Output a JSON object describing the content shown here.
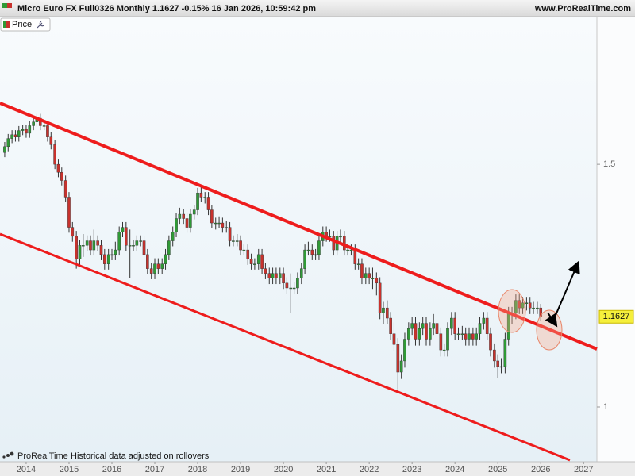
{
  "chart_data": {
    "type": "candlestick",
    "title": "Micro Euro FX Full0326 Monthly 1.1627 -0.15% 16 Jan 2026, 10:59:42 pm",
    "website": "www.ProRealTime.com",
    "legend_label": "Price",
    "footer_brand": "ProRealTime",
    "footer_note": "Historical data adjusted on rollovers",
    "last_price": 1.1627,
    "log_scale": true,
    "grid": false,
    "up_color": "#2f9a36",
    "down_color": "#c8322d",
    "ylim": [
      0.915,
      1.872
    ],
    "yticks": [
      1,
      1.5
    ],
    "xlim": [
      2013.39,
      2027.31
    ],
    "xticks": [
      2014,
      2015,
      2016,
      2017,
      2018,
      2019,
      2020,
      2021,
      2022,
      2023,
      2024,
      2025,
      2026,
      2027
    ],
    "x": [
      2013.5,
      2013.58,
      2013.67,
      2013.75,
      2013.83,
      2013.92,
      2014,
      2014.08,
      2014.17,
      2014.25,
      2014.33,
      2014.42,
      2014.5,
      2014.58,
      2014.67,
      2014.75,
      2014.83,
      2014.92,
      2015,
      2015.08,
      2015.17,
      2015.25,
      2015.33,
      2015.42,
      2015.5,
      2015.58,
      2015.67,
      2015.75,
      2015.83,
      2015.92,
      2016,
      2016.08,
      2016.17,
      2016.25,
      2016.33,
      2016.42,
      2016.5,
      2016.58,
      2016.67,
      2016.75,
      2016.83,
      2016.92,
      2017,
      2017.08,
      2017.17,
      2017.25,
      2017.33,
      2017.42,
      2017.5,
      2017.58,
      2017.67,
      2017.75,
      2017.83,
      2017.92,
      2018,
      2018.08,
      2018.17,
      2018.25,
      2018.33,
      2018.42,
      2018.5,
      2018.58,
      2018.67,
      2018.75,
      2018.83,
      2018.92,
      2019,
      2019.08,
      2019.17,
      2019.25,
      2019.33,
      2019.42,
      2019.5,
      2019.58,
      2019.67,
      2019.75,
      2019.83,
      2019.92,
      2020,
      2020.08,
      2020.17,
      2020.25,
      2020.33,
      2020.42,
      2020.5,
      2020.58,
      2020.67,
      2020.75,
      2020.83,
      2020.92,
      2021,
      2021.08,
      2021.17,
      2021.25,
      2021.33,
      2021.42,
      2021.5,
      2021.58,
      2021.67,
      2021.75,
      2021.83,
      2021.92,
      2022,
      2022.08,
      2022.17,
      2022.25,
      2022.33,
      2022.42,
      2022.5,
      2022.58,
      2022.67,
      2022.75,
      2022.83,
      2022.92,
      2023,
      2023.08,
      2023.17,
      2023.25,
      2023.33,
      2023.42,
      2023.5,
      2023.58,
      2023.67,
      2023.75,
      2023.83,
      2023.92,
      2024,
      2024.08,
      2024.17,
      2024.25,
      2024.33,
      2024.42,
      2024.5,
      2024.58,
      2024.67,
      2024.75,
      2024.83,
      2024.92,
      2025,
      2025.08,
      2025.17,
      2025.25,
      2025.33,
      2025.42,
      2025.5,
      2025.58,
      2025.67,
      2025.75,
      2025.83,
      2025.92,
      2026
    ],
    "candles": [
      [
        1.53,
        1.557,
        1.518,
        1.545
      ],
      [
        1.545,
        1.578,
        1.533,
        1.566
      ],
      [
        1.566,
        1.588,
        1.554,
        1.576
      ],
      [
        1.576,
        1.588,
        1.558,
        1.57
      ],
      [
        1.57,
        1.599,
        1.558,
        1.587
      ],
      [
        1.587,
        1.602,
        1.575,
        1.59
      ],
      [
        1.59,
        1.602,
        1.568,
        1.58
      ],
      [
        1.58,
        1.612,
        1.568,
        1.6
      ],
      [
        1.6,
        1.622,
        1.588,
        1.61
      ],
      [
        1.61,
        1.632,
        1.598,
        1.62
      ],
      [
        1.62,
        1.632,
        1.588,
        1.6
      ],
      [
        1.6,
        1.612,
        1.588,
        1.6
      ],
      [
        1.6,
        1.612,
        1.558,
        1.57
      ],
      [
        1.57,
        1.582,
        1.538,
        1.55
      ],
      [
        1.55,
        1.562,
        1.488,
        1.5
      ],
      [
        1.5,
        1.512,
        1.468,
        1.48
      ],
      [
        1.48,
        1.492,
        1.448,
        1.46
      ],
      [
        1.46,
        1.472,
        1.408,
        1.42
      ],
      [
        1.42,
        1.432,
        1.338,
        1.35
      ],
      [
        1.35,
        1.362,
        1.318,
        1.33
      ],
      [
        1.33,
        1.342,
        1.26,
        1.28
      ],
      [
        1.28,
        1.322,
        1.268,
        1.31
      ],
      [
        1.31,
        1.335,
        1.285,
        1.31
      ],
      [
        1.31,
        1.332,
        1.298,
        1.32
      ],
      [
        1.32,
        1.332,
        1.288,
        1.3
      ],
      [
        1.3,
        1.345,
        1.288,
        1.32
      ],
      [
        1.32,
        1.332,
        1.298,
        1.31
      ],
      [
        1.31,
        1.322,
        1.278,
        1.29
      ],
      [
        1.29,
        1.302,
        1.258,
        1.27
      ],
      [
        1.27,
        1.302,
        1.258,
        1.29
      ],
      [
        1.29,
        1.302,
        1.278,
        1.29
      ],
      [
        1.29,
        1.318,
        1.278,
        1.3
      ],
      [
        1.3,
        1.352,
        1.288,
        1.34
      ],
      [
        1.34,
        1.362,
        1.328,
        1.35
      ],
      [
        1.35,
        1.362,
        1.298,
        1.31
      ],
      [
        1.31,
        1.345,
        1.24,
        1.31
      ],
      [
        1.31,
        1.322,
        1.298,
        1.31
      ],
      [
        1.31,
        1.332,
        1.298,
        1.32
      ],
      [
        1.32,
        1.332,
        1.308,
        1.32
      ],
      [
        1.32,
        1.332,
        1.278,
        1.29
      ],
      [
        1.29,
        1.302,
        1.248,
        1.26
      ],
      [
        1.26,
        1.272,
        1.238,
        1.25
      ],
      [
        1.25,
        1.282,
        1.238,
        1.27
      ],
      [
        1.27,
        1.282,
        1.248,
        1.26
      ],
      [
        1.26,
        1.282,
        1.248,
        1.27
      ],
      [
        1.27,
        1.302,
        1.258,
        1.29
      ],
      [
        1.29,
        1.332,
        1.278,
        1.32
      ],
      [
        1.32,
        1.352,
        1.308,
        1.34
      ],
      [
        1.34,
        1.382,
        1.328,
        1.37
      ],
      [
        1.37,
        1.395,
        1.358,
        1.38
      ],
      [
        1.38,
        1.392,
        1.358,
        1.37
      ],
      [
        1.37,
        1.382,
        1.338,
        1.35
      ],
      [
        1.35,
        1.392,
        1.338,
        1.38
      ],
      [
        1.38,
        1.402,
        1.368,
        1.39
      ],
      [
        1.39,
        1.442,
        1.378,
        1.43
      ],
      [
        1.43,
        1.445,
        1.408,
        1.42
      ],
      [
        1.42,
        1.432,
        1.405,
        1.42
      ],
      [
        1.42,
        1.432,
        1.378,
        1.39
      ],
      [
        1.39,
        1.402,
        1.348,
        1.36
      ],
      [
        1.36,
        1.372,
        1.345,
        1.36
      ],
      [
        1.36,
        1.375,
        1.348,
        1.36
      ],
      [
        1.36,
        1.372,
        1.338,
        1.35
      ],
      [
        1.35,
        1.365,
        1.338,
        1.35
      ],
      [
        1.35,
        1.362,
        1.308,
        1.32
      ],
      [
        1.32,
        1.332,
        1.308,
        1.32
      ],
      [
        1.32,
        1.335,
        1.308,
        1.32
      ],
      [
        1.32,
        1.332,
        1.288,
        1.3
      ],
      [
        1.3,
        1.312,
        1.288,
        1.3
      ],
      [
        1.3,
        1.312,
        1.268,
        1.28
      ],
      [
        1.28,
        1.292,
        1.258,
        1.27
      ],
      [
        1.27,
        1.282,
        1.258,
        1.27
      ],
      [
        1.27,
        1.302,
        1.258,
        1.29
      ],
      [
        1.29,
        1.302,
        1.248,
        1.26
      ],
      [
        1.26,
        1.272,
        1.238,
        1.25
      ],
      [
        1.25,
        1.262,
        1.228,
        1.24
      ],
      [
        1.24,
        1.262,
        1.228,
        1.25
      ],
      [
        1.25,
        1.262,
        1.228,
        1.24
      ],
      [
        1.24,
        1.262,
        1.228,
        1.25
      ],
      [
        1.25,
        1.262,
        1.218,
        1.23
      ],
      [
        1.23,
        1.242,
        1.208,
        1.22
      ],
      [
        1.22,
        1.25,
        1.17,
        1.22
      ],
      [
        1.22,
        1.232,
        1.208,
        1.22
      ],
      [
        1.22,
        1.252,
        1.208,
        1.24
      ],
      [
        1.24,
        1.272,
        1.228,
        1.26
      ],
      [
        1.26,
        1.312,
        1.248,
        1.3
      ],
      [
        1.3,
        1.318,
        1.288,
        1.3
      ],
      [
        1.3,
        1.312,
        1.278,
        1.29
      ],
      [
        1.29,
        1.302,
        1.278,
        1.29
      ],
      [
        1.29,
        1.332,
        1.278,
        1.32
      ],
      [
        1.32,
        1.352,
        1.308,
        1.34
      ],
      [
        1.34,
        1.352,
        1.318,
        1.33
      ],
      [
        1.33,
        1.345,
        1.318,
        1.33
      ],
      [
        1.33,
        1.342,
        1.288,
        1.3
      ],
      [
        1.3,
        1.342,
        1.288,
        1.33
      ],
      [
        1.33,
        1.345,
        1.318,
        1.33
      ],
      [
        1.33,
        1.342,
        1.288,
        1.3
      ],
      [
        1.3,
        1.312,
        1.288,
        1.3
      ],
      [
        1.3,
        1.312,
        1.288,
        1.3
      ],
      [
        1.3,
        1.312,
        1.258,
        1.27
      ],
      [
        1.27,
        1.282,
        1.258,
        1.27
      ],
      [
        1.27,
        1.282,
        1.228,
        1.24
      ],
      [
        1.24,
        1.262,
        1.228,
        1.25
      ],
      [
        1.25,
        1.262,
        1.228,
        1.24
      ],
      [
        1.24,
        1.262,
        1.218,
        1.24
      ],
      [
        1.24,
        1.252,
        1.205,
        1.23
      ],
      [
        1.23,
        1.242,
        1.158,
        1.17
      ],
      [
        1.17,
        1.192,
        1.148,
        1.18
      ],
      [
        1.18,
        1.195,
        1.148,
        1.16
      ],
      [
        1.16,
        1.172,
        1.118,
        1.13
      ],
      [
        1.13,
        1.152,
        1.098,
        1.11
      ],
      [
        1.11,
        1.122,
        1.03,
        1.06
      ],
      [
        1.06,
        1.092,
        1.048,
        1.08
      ],
      [
        1.08,
        1.132,
        1.068,
        1.12
      ],
      [
        1.12,
        1.152,
        1.108,
        1.14
      ],
      [
        1.14,
        1.162,
        1.128,
        1.15
      ],
      [
        1.15,
        1.162,
        1.108,
        1.12
      ],
      [
        1.12,
        1.152,
        1.108,
        1.14
      ],
      [
        1.14,
        1.162,
        1.128,
        1.15
      ],
      [
        1.15,
        1.162,
        1.108,
        1.12
      ],
      [
        1.12,
        1.152,
        1.108,
        1.14
      ],
      [
        1.14,
        1.168,
        1.128,
        1.15
      ],
      [
        1.15,
        1.162,
        1.118,
        1.13
      ],
      [
        1.13,
        1.142,
        1.088,
        1.1
      ],
      [
        1.1,
        1.112,
        1.088,
        1.1
      ],
      [
        1.1,
        1.152,
        1.088,
        1.14
      ],
      [
        1.14,
        1.172,
        1.128,
        1.16
      ],
      [
        1.16,
        1.172,
        1.118,
        1.13
      ],
      [
        1.13,
        1.142,
        1.118,
        1.13
      ],
      [
        1.13,
        1.145,
        1.118,
        1.13
      ],
      [
        1.13,
        1.142,
        1.108,
        1.12
      ],
      [
        1.12,
        1.142,
        1.108,
        1.13
      ],
      [
        1.13,
        1.142,
        1.108,
        1.12
      ],
      [
        1.12,
        1.142,
        1.108,
        1.13
      ],
      [
        1.13,
        1.162,
        1.118,
        1.15
      ],
      [
        1.15,
        1.172,
        1.138,
        1.16
      ],
      [
        1.16,
        1.172,
        1.118,
        1.13
      ],
      [
        1.13,
        1.142,
        1.088,
        1.1
      ],
      [
        1.1,
        1.112,
        1.068,
        1.08
      ],
      [
        1.08,
        1.092,
        1.05,
        1.07
      ],
      [
        1.07,
        1.085,
        1.058,
        1.07
      ],
      [
        1.07,
        1.132,
        1.058,
        1.12
      ],
      [
        1.12,
        1.182,
        1.108,
        1.17
      ],
      [
        1.17,
        1.182,
        1.148,
        1.17
      ],
      [
        1.17,
        1.207,
        1.158,
        1.195
      ],
      [
        1.195,
        1.207,
        1.168,
        1.18
      ],
      [
        1.18,
        1.202,
        1.168,
        1.19
      ],
      [
        1.19,
        1.202,
        1.175,
        1.19
      ],
      [
        1.19,
        1.202,
        1.168,
        1.18
      ],
      [
        1.18,
        1.192,
        1.168,
        1.18
      ],
      [
        1.18,
        1.192,
        1.168,
        1.18
      ],
      [
        1.18,
        1.188,
        1.155,
        1.1627
      ]
    ]
  }
}
